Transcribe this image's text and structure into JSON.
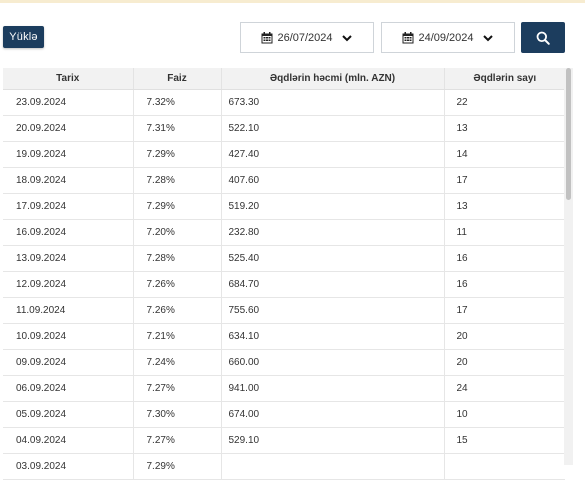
{
  "toolbar": {
    "upload_label": "Yüklə",
    "date_from": "26/07/2024",
    "date_to": "24/09/2024"
  },
  "table": {
    "headers": [
      "Tarix",
      "Faiz",
      "Əqdlərin həcmi (mln. AZN)",
      "Əqdlərin sayı"
    ],
    "rows": [
      [
        "23.09.2024",
        "7.32%",
        "673.30",
        "22"
      ],
      [
        "20.09.2024",
        "7.31%",
        "522.10",
        "13"
      ],
      [
        "19.09.2024",
        "7.29%",
        "427.40",
        "14"
      ],
      [
        "18.09.2024",
        "7.28%",
        "407.60",
        "17"
      ],
      [
        "17.09.2024",
        "7.29%",
        "519.20",
        "13"
      ],
      [
        "16.09.2024",
        "7.20%",
        "232.80",
        "11"
      ],
      [
        "13.09.2024",
        "7.28%",
        "525.40",
        "16"
      ],
      [
        "12.09.2024",
        "7.26%",
        "684.70",
        "16"
      ],
      [
        "11.09.2024",
        "7.26%",
        "755.60",
        "17"
      ],
      [
        "10.09.2024",
        "7.21%",
        "634.10",
        "20"
      ],
      [
        "09.09.2024",
        "7.24%",
        "660.00",
        "20"
      ],
      [
        "06.09.2024",
        "7.27%",
        "941.00",
        "24"
      ],
      [
        "05.09.2024",
        "7.30%",
        "674.00",
        "10"
      ],
      [
        "04.09.2024",
        "7.27%",
        "529.10",
        "15"
      ],
      [
        "03.09.2024",
        "7.29%",
        "",
        ""
      ]
    ]
  },
  "icons": {
    "calendar": "calendar-icon",
    "chevron": "chevron-down-icon",
    "search": "search-icon"
  },
  "colors": {
    "primary": "#1c3d5e",
    "accent": "#f7ecd0"
  }
}
